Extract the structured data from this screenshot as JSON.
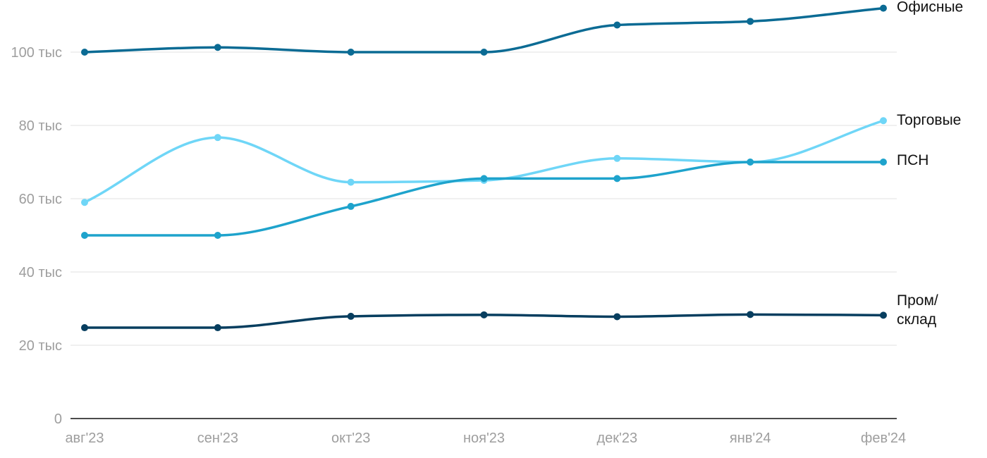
{
  "chart_data": {
    "type": "line",
    "categories": [
      "авг'23",
      "сен'23",
      "окт'23",
      "ноя'23",
      "дек'23",
      "янв'24",
      "фев'24"
    ],
    "yticks": [
      {
        "value": 0,
        "label": "0"
      },
      {
        "value": 20000,
        "label": "20 тыс"
      },
      {
        "value": 40000,
        "label": "40 тыс"
      },
      {
        "value": 60000,
        "label": "60 тыс"
      },
      {
        "value": 80000,
        "label": "80 тыс"
      },
      {
        "value": 100000,
        "label": "100 тыс"
      }
    ],
    "ylim": [
      0,
      112000
    ],
    "grid": true,
    "legend": "line-end labels on the right",
    "series": [
      {
        "key": "office",
        "name": "Офисные",
        "label_lines": [
          "Офисные"
        ],
        "color": "#0b6b94",
        "values": [
          100000,
          101300,
          100000,
          100000,
          107400,
          108400,
          112000
        ]
      },
      {
        "key": "retail",
        "name": "Торговые",
        "label_lines": [
          "Торговые"
        ],
        "color": "#6fd6f7",
        "values": [
          59000,
          76700,
          64500,
          65000,
          71000,
          70000,
          81300
        ]
      },
      {
        "key": "psn",
        "name": "ПСН",
        "label_lines": [
          "ПСН"
        ],
        "color": "#1ea3cc",
        "values": [
          50000,
          50000,
          57900,
          65500,
          65500,
          70000,
          70000
        ]
      },
      {
        "key": "industrial",
        "name": "Пром/склад",
        "label_lines": [
          "Пром/",
          "склад"
        ],
        "color": "#073e5f",
        "values": [
          24800,
          24800,
          27900,
          28300,
          27800,
          28400,
          28200
        ]
      }
    ]
  }
}
